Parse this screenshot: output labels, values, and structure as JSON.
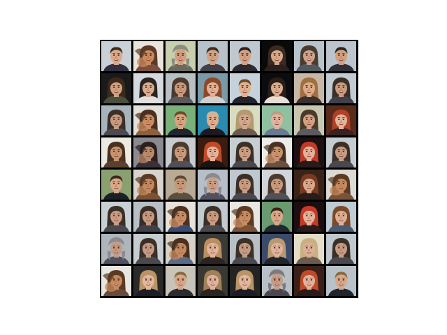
{
  "figure": {
    "background": "#ffffff",
    "grid_border_color": "#000000",
    "rows": 8,
    "cols": 8
  },
  "tiles": [
    {
      "bg": "#c9d1d6",
      "skin": "#d8a98a",
      "hair": "#3a2a20",
      "hair_style": "short",
      "shirt": "#303040"
    },
    {
      "bg": "#e8e4dc",
      "skin": "#c98a5c",
      "hair": "#5a3a28",
      "hair_style": "blend",
      "shirt": "#7a5040"
    },
    {
      "bg": "#c8cfae",
      "skin": "#d2a07e",
      "hair": "#8a8e80",
      "hair_style": "hat",
      "shirt": "#6a6a60"
    },
    {
      "bg": "#b7c2c9",
      "skin": "#cfa386",
      "hair": "#3a2c24",
      "hair_style": "short",
      "shirt": "#404048"
    },
    {
      "bg": "#c0c8cf",
      "skin": "#d1a184",
      "hair": "#2a2220",
      "hair_style": "short",
      "shirt": "#2a2a30"
    },
    {
      "bg": "#0a0a0a",
      "skin": "#d6a888",
      "hair": "#3a2a20",
      "hair_style": "long",
      "shirt": "#2a2020"
    },
    {
      "bg": "#b9c3cc",
      "skin": "#cda18a",
      "hair": "#4a3a30",
      "hair_style": "long",
      "shirt": "#505860"
    },
    {
      "bg": "#bcc5cd",
      "skin": "#d0a080",
      "hair": "#2c2420",
      "hair_style": "short",
      "shirt": "#303038"
    },
    {
      "bg": "#1a1a1a",
      "skin": "#d0a080",
      "hair": "#3a2a1c",
      "hair_style": "long",
      "shirt": "#4a5040"
    },
    {
      "bg": "#d3d9de",
      "skin": "#d8ac8e",
      "hair": "#2a2420",
      "hair_style": "long",
      "shirt": "#e0e0e0"
    },
    {
      "bg": "#b8c0c4",
      "skin": "#c79a7c",
      "hair": "#4a3a30",
      "hair_style": "long",
      "shirt": "#5a5a5a"
    },
    {
      "bg": "#7a9aa8",
      "skin": "#e2b094",
      "hair": "#8a4a2a",
      "hair_style": "long",
      "shirt": "#d0d0d0"
    },
    {
      "bg": "#c6d2da",
      "skin": "#e0b090",
      "hair": "#6a4a30",
      "hair_style": "short",
      "shirt": "#20242c"
    },
    {
      "bg": "#0c0c10",
      "skin": "#d9ad90",
      "hair": "#2a1e18",
      "hair_style": "long",
      "shirt": "#e8e0d8"
    },
    {
      "bg": "#c7b7a6",
      "skin": "#dbab88",
      "hair": "#a07040",
      "hair_style": "long",
      "shirt": "#3a3030"
    },
    {
      "bg": "#c3cbd2",
      "skin": "#c99c80",
      "hair": "#3a3028",
      "hair_style": "long",
      "shirt": "#40404a"
    },
    {
      "bg": "#a8b4bc",
      "skin": "#c49a80",
      "hair": "#3a3028",
      "hair_style": "long",
      "shirt": "#4a4a50"
    },
    {
      "bg": "#e2e0da",
      "skin": "#c98c60",
      "hair": "#4a3020",
      "hair_style": "blend",
      "shirt": "#8a6040"
    },
    {
      "bg": "#7ab07a",
      "skin": "#d8a47e",
      "hair": "#6a4a28",
      "hair_style": "short",
      "shirt": "#20242c"
    },
    {
      "bg": "#2a8ab0",
      "skin": "#e0ae8c",
      "hair": "#c8b89a",
      "hair_style": "short",
      "shirt": "#1a1a20"
    },
    {
      "bg": "#d8dcc0",
      "skin": "#d2a88c",
      "hair": "#b49a70",
      "hair_style": "long",
      "shirt": "#6a5a50"
    },
    {
      "bg": "#8fc0a0",
      "skin": "#e0b4a0",
      "hair": "#b8a080",
      "hair_style": "short",
      "shirt": "#6a7a90"
    },
    {
      "bg": "#c8c8b0",
      "skin": "#d0a080",
      "hair": "#4a3a2a",
      "hair_style": "long",
      "shirt": "#5a5a60"
    },
    {
      "bg": "#5a2a1a",
      "skin": "#e2b49a",
      "hair": "#b04028",
      "hair_style": "long",
      "shirt": "#3a2020"
    },
    {
      "bg": "#ece8e2",
      "skin": "#c79470",
      "hair": "#4a3020",
      "hair_style": "long",
      "shirt": "#5a4030"
    },
    {
      "bg": "#8a8a90",
      "skin": "#b88a6c",
      "hair": "#2a2020",
      "hair_style": "blend",
      "shirt": "#3a3038"
    },
    {
      "bg": "#c8ccd0",
      "skin": "#c89a7c",
      "hair": "#4a3a30",
      "hair_style": "long",
      "shirt": "#505058"
    },
    {
      "bg": "#3a1c10",
      "skin": "#e4b49a",
      "hair": "#c04a28",
      "hair_style": "long",
      "shirt": "#1c1410"
    },
    {
      "bg": "#c6ced4",
      "skin": "#c99e84",
      "hair": "#3a3028",
      "hair_style": "long",
      "shirt": "#48484e"
    },
    {
      "bg": "#ececea",
      "skin": "#c8946c",
      "hair": "#4a3222",
      "hair_style": "blend",
      "shirt": "#6a5040"
    },
    {
      "bg": "#1c1010",
      "skin": "#e2b29a",
      "hair": "#c03a28",
      "hair_style": "long",
      "shirt": "#2a1a1a"
    },
    {
      "bg": "#c4ccd2",
      "skin": "#c69c80",
      "hair": "#3a3028",
      "hair_style": "long",
      "shirt": "#48484e"
    },
    {
      "bg": "#8aa070",
      "skin": "#d8a888",
      "hair": "#3a2a20",
      "hair_style": "short",
      "shirt": "#1a2028"
    },
    {
      "bg": "#d8d4cc",
      "skin": "#c48a5e",
      "hair": "#5a3a22",
      "hair_style": "blend",
      "shirt": "#7a5238"
    },
    {
      "bg": "#b8aa94",
      "skin": "#c49a78",
      "hair": "#5a4a38",
      "hair_style": "short",
      "shirt": "#5a5040"
    },
    {
      "bg": "#b6bec8",
      "skin": "#c8a088",
      "hair": "#8a8a90",
      "hair_style": "hat",
      "shirt": "#505060"
    },
    {
      "bg": "#bfc8ce",
      "skin": "#c99c80",
      "hair": "#3a3028",
      "hair_style": "long",
      "shirt": "#48484e"
    },
    {
      "bg": "#d2d6d8",
      "skin": "#c89a7c",
      "hair": "#4a3a30",
      "hair_style": "long",
      "shirt": "#505058"
    },
    {
      "bg": "#3a2418",
      "skin": "#d8a88a",
      "hair": "#7a3a22",
      "hair_style": "long",
      "shirt": "#2a1c18"
    },
    {
      "bg": "#dcdad4",
      "skin": "#c68a5e",
      "hair": "#5a3a22",
      "hair_style": "blend",
      "shirt": "#7a5238"
    },
    {
      "bg": "#c8d0d4",
      "skin": "#c99e84",
      "hair": "#3a3028",
      "hair_style": "long",
      "shirt": "#48484e"
    },
    {
      "bg": "#b8c0c6",
      "skin": "#c69a80",
      "hair": "#3a2c24",
      "hair_style": "long",
      "shirt": "#404048"
    },
    {
      "bg": "#e6e2da",
      "skin": "#c88e64",
      "hair": "#4a3020",
      "hair_style": "blend",
      "shirt": "#3a4a70"
    },
    {
      "bg": "#c2cad0",
      "skin": "#c89c80",
      "hair": "#3a3028",
      "hair_style": "long",
      "shirt": "#48484e"
    },
    {
      "bg": "#e8e6e0",
      "skin": "#c88c60",
      "hair": "#5a3a22",
      "hair_style": "blend",
      "shirt": "#7a5238"
    },
    {
      "bg": "#6a9a70",
      "skin": "#d8a888",
      "hair": "#3a2418",
      "hair_style": "short",
      "shirt": "#202830"
    },
    {
      "bg": "#1a0e0e",
      "skin": "#e4b49a",
      "hair": "#c83a28",
      "hair_style": "long",
      "shirt": "#2a1a1a"
    },
    {
      "bg": "#c0ccd4",
      "skin": "#e0b096",
      "hair": "#7a4a2a",
      "hair_style": "long",
      "shirt": "#4a5a70"
    },
    {
      "bg": "#aeb6bc",
      "skin": "#c49c84",
      "hair": "#8a8a90",
      "hair_style": "hat",
      "shirt": "#505060"
    },
    {
      "bg": "#c6ccd0",
      "skin": "#c49a82",
      "hair": "#3a3028",
      "hair_style": "long",
      "shirt": "#48484e"
    },
    {
      "bg": "#d6d2c8",
      "skin": "#c48a5e",
      "hair": "#4a3020",
      "hair_style": "blend",
      "shirt": "#5a6a8a"
    },
    {
      "bg": "#3a3a36",
      "skin": "#e2b49c",
      "hair": "#b89060",
      "hair_style": "long",
      "shirt": "#2a2420"
    },
    {
      "bg": "#b8c0c6",
      "skin": "#c49c84",
      "hair": "#3a3028",
      "hair_style": "long",
      "shirt": "#48484e"
    },
    {
      "bg": "#3a4a6a",
      "skin": "#e0b49c",
      "hair": "#b89a70",
      "hair_style": "long",
      "shirt": "#20242c"
    },
    {
      "bg": "#e4dcc8",
      "skin": "#dcb096",
      "hair": "#c8b080",
      "hair_style": "long",
      "shirt": "#6a5a50"
    },
    {
      "bg": "#c0c8ce",
      "skin": "#c69c82",
      "hair": "#3a3028",
      "hair_style": "long",
      "shirt": "#48484e"
    },
    {
      "bg": "#e8e6e0",
      "skin": "#c68a5e",
      "hair": "#5a3a22",
      "hair_style": "blend",
      "shirt": "#6a4a38"
    },
    {
      "bg": "#2a2a2a",
      "skin": "#e4b89e",
      "hair": "#b89468",
      "hair_style": "long",
      "shirt": "#1c1c24"
    },
    {
      "bg": "#c8c4ba",
      "skin": "#d8a888",
      "hair": "#8a6a40",
      "hair_style": "short",
      "shirt": "#2a2a30"
    },
    {
      "bg": "#3a3832",
      "skin": "#e0b49c",
      "hair": "#a08058",
      "hair_style": "long",
      "shirt": "#2a2420"
    },
    {
      "bg": "#242424",
      "skin": "#e4b89e",
      "hair": "#b89468",
      "hair_style": "long",
      "shirt": "#1c1c24"
    },
    {
      "bg": "#b8c0c6",
      "skin": "#c69c84",
      "hair": "#7a7a80",
      "hair_style": "hat",
      "shirt": "#48484e"
    },
    {
      "bg": "#3a2018",
      "skin": "#e0b29a",
      "hair": "#c04a28",
      "hair_style": "long",
      "shirt": "#2a1a1a"
    },
    {
      "bg": "#b8c2c8",
      "skin": "#d8a888",
      "hair": "#8a6a40",
      "hair_style": "short",
      "shirt": "#20242c"
    }
  ]
}
